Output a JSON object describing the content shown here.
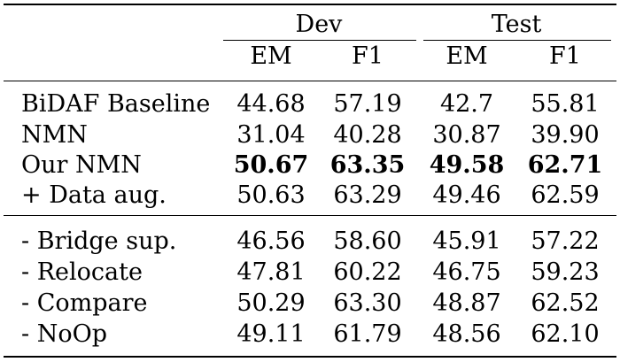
{
  "table": {
    "groups": [
      {
        "label": "Dev",
        "columns": [
          "EM",
          "F1"
        ]
      },
      {
        "label": "Test",
        "columns": [
          "EM",
          "F1"
        ]
      }
    ],
    "sections": [
      {
        "rows": [
          {
            "label": "BiDAF Baseline",
            "values": [
              "44.68",
              "57.19",
              "42.7",
              "55.81"
            ],
            "bold": false
          },
          {
            "label": "NMN",
            "values": [
              "31.04",
              "40.28",
              "30.87",
              "39.90"
            ],
            "bold": false
          },
          {
            "label": "Our NMN",
            "values": [
              "50.67",
              "63.35",
              "49.58",
              "62.71"
            ],
            "bold": true
          },
          {
            "label": "+ Data aug.",
            "values": [
              "50.63",
              "63.29",
              "49.46",
              "62.59"
            ],
            "bold": false
          }
        ]
      },
      {
        "rows": [
          {
            "label": "- Bridge sup.",
            "values": [
              "46.56",
              "58.60",
              "45.91",
              "57.22"
            ],
            "bold": false
          },
          {
            "label": "- Relocate",
            "values": [
              "47.81",
              "60.22",
              "46.75",
              "59.23"
            ],
            "bold": false
          },
          {
            "label": "- Compare",
            "values": [
              "50.29",
              "63.30",
              "48.87",
              "62.52"
            ],
            "bold": false
          },
          {
            "label": "- NoOp",
            "values": [
              "49.11",
              "61.79",
              "48.56",
              "62.10"
            ],
            "bold": false
          }
        ]
      }
    ]
  }
}
